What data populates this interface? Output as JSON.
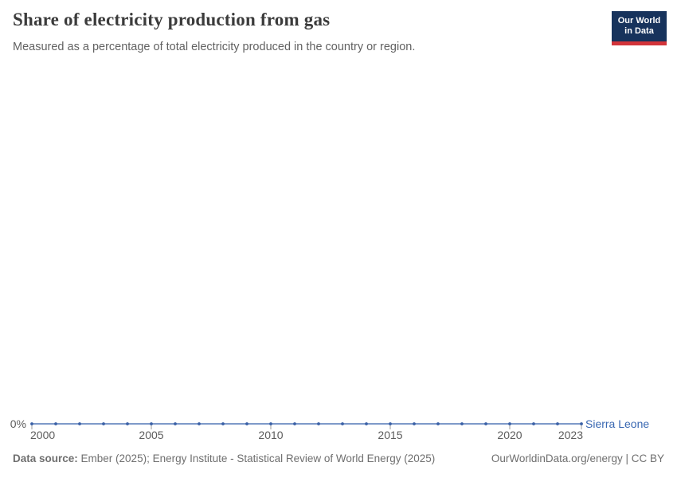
{
  "header": {
    "title": "Share of electricity production from gas",
    "subtitle": "Measured as a percentage of total electricity produced in the country or region."
  },
  "logo": {
    "line1": "Our World",
    "line2": "in Data",
    "bg_color": "#17335c",
    "bar_color": "#d2343a"
  },
  "chart_data": {
    "type": "line",
    "title": "Share of electricity production from gas",
    "subtitle": "Measured as a percentage of total electricity produced in the country or region.",
    "xlabel": "",
    "ylabel": "",
    "unit": "%",
    "grid": false,
    "legend_position": "end-of-line",
    "xlim": [
      2000,
      2023
    ],
    "ylim": [
      0,
      0
    ],
    "x": [
      2000,
      2001,
      2002,
      2003,
      2004,
      2005,
      2006,
      2007,
      2008,
      2009,
      2010,
      2011,
      2012,
      2013,
      2014,
      2015,
      2016,
      2017,
      2018,
      2019,
      2020,
      2021,
      2022,
      2023
    ],
    "series": [
      {
        "name": "Sierra Leone",
        "values": [
          0,
          0,
          0,
          0,
          0,
          0,
          0,
          0,
          0,
          0,
          0,
          0,
          0,
          0,
          0,
          0,
          0,
          0,
          0,
          0,
          0,
          0,
          0,
          0
        ]
      }
    ],
    "x_ticks": [
      2000,
      2005,
      2010,
      2015,
      2020,
      2023
    ],
    "y_axis_tick": "0%",
    "line_color": "#5379b7",
    "marker_color": "#3a60a6",
    "label_color": "#3a68b2",
    "axis_text_color": "#5c5c5c",
    "tick_color": "#9b9b9b"
  },
  "footer": {
    "source_label": "Data source:",
    "source_text": " Ember (2025); Energy Institute - Statistical Review of World Energy (2025)",
    "credit": "OurWorldinData.org/energy | CC BY"
  }
}
